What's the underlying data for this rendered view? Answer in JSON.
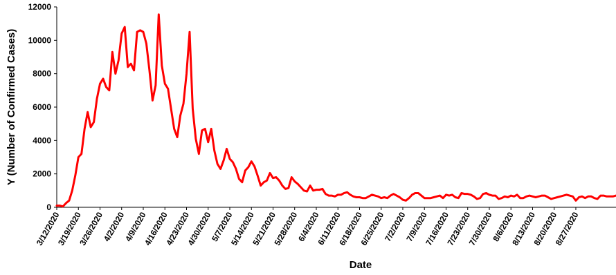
{
  "chart_data": {
    "type": "line",
    "title": "",
    "xlabel": "Date",
    "ylabel": "Y (Number of Confirmed Cases)",
    "ylim": [
      0,
      12000
    ],
    "yticks": [
      "0",
      "2000",
      "4000",
      "6000",
      "8000",
      "10000",
      "12000"
    ],
    "xtick_labels": [
      "3/12/2020",
      "3/19/2020",
      "3/26/2020",
      "4/2/2020",
      "4/9/2020",
      "4/16/2020",
      "4/23/2020",
      "4/30/2020",
      "5/7/2020",
      "5/14/2020",
      "5/21/2020",
      "5/28/2020",
      "6/4/2020",
      "6/11/2020",
      "6/18/2020",
      "6/25/2020",
      "7/2/2020",
      "7/9/2020",
      "7/16/2020",
      "7/23/2020",
      "7/30/2020",
      "8/6/2020",
      "8/13/2020",
      "8/20/2020",
      "8/27/2020"
    ],
    "x_start": "3/12/2020",
    "grid": false,
    "legend": "none",
    "series": [
      {
        "color": "#ff0000",
        "values": [
          100,
          100,
          50,
          250,
          400,
          1000,
          1900,
          3000,
          3200,
          4700,
          5700,
          4800,
          5100,
          6500,
          7400,
          7700,
          7200,
          7000,
          9300,
          8000,
          8800,
          10400,
          10800,
          8400,
          8600,
          8200,
          10500,
          10600,
          10500,
          9800,
          8200,
          6400,
          7300,
          11550,
          8500,
          7400,
          7100,
          5900,
          4700,
          4200,
          5500,
          6200,
          8000,
          10500,
          5900,
          4100,
          3200,
          4600,
          4700,
          3900,
          4700,
          3400,
          2600,
          2300,
          2800,
          3500,
          2900,
          2700,
          2300,
          1700,
          1500,
          2200,
          2400,
          2750,
          2450,
          1900,
          1300,
          1500,
          1600,
          2050,
          1750,
          1800,
          1600,
          1300,
          1100,
          1150,
          1800,
          1550,
          1400,
          1200,
          1000,
          950,
          1300,
          1000,
          1050,
          1050,
          1100,
          800,
          700,
          700,
          650,
          750,
          750,
          850,
          900,
          750,
          650,
          600,
          600,
          550,
          550,
          650,
          750,
          700,
          650,
          550,
          600,
          550,
          700,
          800,
          700,
          600,
          450,
          400,
          550,
          750,
          850,
          850,
          700,
          550,
          550,
          550,
          600,
          650,
          700,
          550,
          750,
          700,
          750,
          600,
          550,
          850,
          800,
          800,
          750,
          650,
          500,
          550,
          800,
          850,
          750,
          700,
          700,
          500,
          550,
          650,
          600,
          700,
          650,
          750,
          550,
          550,
          650,
          700,
          650,
          600,
          650,
          700,
          700,
          600,
          500,
          550,
          600,
          650,
          700,
          750,
          700,
          650,
          400,
          600,
          650,
          550,
          650,
          650,
          550,
          500,
          700,
          700,
          650,
          650,
          650,
          700
        ]
      }
    ]
  }
}
